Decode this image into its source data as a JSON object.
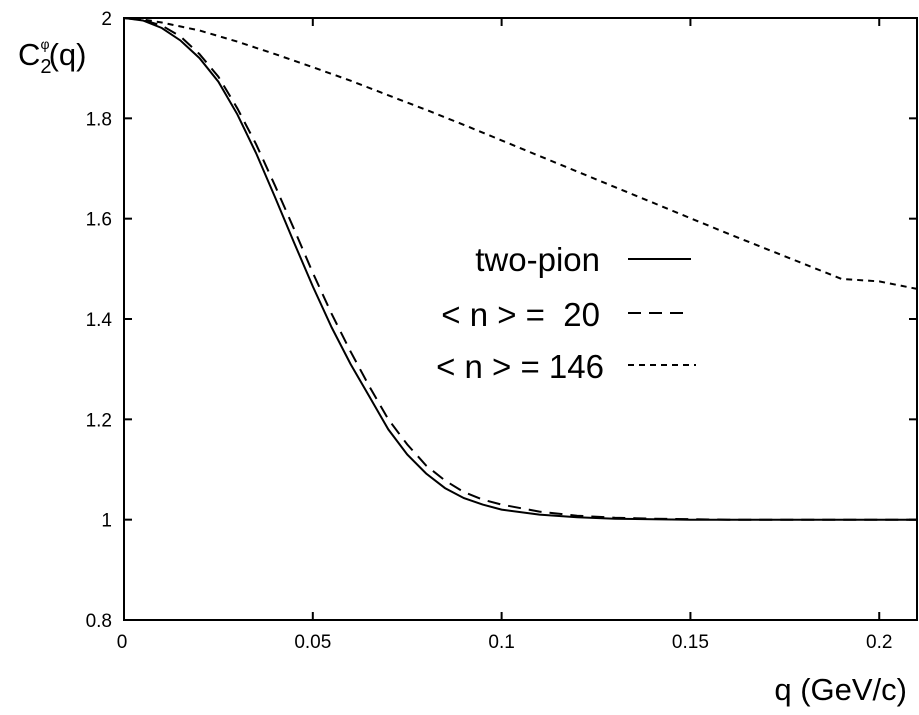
{
  "chart_data": {
    "type": "line",
    "xlabel": "q (GeV/c)",
    "ylabel": {
      "base": "C",
      "sub": "2",
      "sup": "φ",
      "arg": "(q)"
    },
    "xlim": [
      0,
      0.21
    ],
    "ylim": [
      0.8,
      2.0
    ],
    "x_ticks": [
      0,
      0.05,
      0.1,
      0.15,
      0.2
    ],
    "x_tick_labels": [
      "0",
      "0.05",
      "0.1",
      "0.15",
      "0.2"
    ],
    "y_ticks": [
      0.8,
      1.0,
      1.2,
      1.4,
      1.6,
      1.8,
      2.0
    ],
    "y_tick_labels": [
      "0.8",
      "1",
      "1.2",
      "1.4",
      "1.6",
      "1.8",
      "2"
    ],
    "grid": false,
    "legend_position": "center-right",
    "series": [
      {
        "name": "two-pion",
        "line_style": "solid",
        "x": [
          0,
          0.005,
          0.01,
          0.015,
          0.02,
          0.025,
          0.03,
          0.035,
          0.04,
          0.045,
          0.05,
          0.055,
          0.06,
          0.065,
          0.07,
          0.075,
          0.08,
          0.085,
          0.09,
          0.095,
          0.1,
          0.11,
          0.12,
          0.13,
          0.14,
          0.15,
          0.16,
          0.18,
          0.2,
          0.21
        ],
        "y": [
          2.0,
          1.995,
          1.98,
          1.955,
          1.92,
          1.873,
          1.808,
          1.73,
          1.643,
          1.553,
          1.465,
          1.383,
          1.31,
          1.245,
          1.18,
          1.13,
          1.092,
          1.063,
          1.043,
          1.03,
          1.02,
          1.01,
          1.005,
          1.002,
          1.001,
          1.0,
          1.0,
          1.0,
          1.0,
          1.0
        ]
      },
      {
        "name": "< n > =  20",
        "line_style": "dashed",
        "x": [
          0,
          0.005,
          0.01,
          0.015,
          0.02,
          0.025,
          0.03,
          0.035,
          0.04,
          0.045,
          0.05,
          0.055,
          0.06,
          0.065,
          0.07,
          0.075,
          0.08,
          0.085,
          0.09,
          0.095,
          0.1,
          0.11,
          0.12,
          0.13,
          0.14,
          0.15,
          0.16,
          0.18,
          0.2,
          0.21
        ],
        "y": [
          2.0,
          1.996,
          1.985,
          1.963,
          1.928,
          1.883,
          1.82,
          1.748,
          1.666,
          1.58,
          1.492,
          1.41,
          1.335,
          1.265,
          1.2,
          1.15,
          1.108,
          1.078,
          1.055,
          1.04,
          1.03,
          1.016,
          1.008,
          1.004,
          1.002,
          1.001,
          1.0,
          1.0,
          1.0,
          1.0
        ]
      },
      {
        "name": "< n > = 146",
        "line_style": "dotted",
        "x": [
          0,
          0.005,
          0.01,
          0.02,
          0.03,
          0.04,
          0.05,
          0.06,
          0.07,
          0.08,
          0.09,
          0.1,
          0.11,
          0.12,
          0.13,
          0.14,
          0.15,
          0.16,
          0.17,
          0.18,
          0.19,
          0.2,
          0.21
        ],
        "y": [
          2.0,
          1.997,
          1.991,
          1.975,
          1.953,
          1.928,
          1.902,
          1.875,
          1.846,
          1.817,
          1.787,
          1.756,
          1.725,
          1.694,
          1.663,
          1.632,
          1.601,
          1.57,
          1.54,
          1.51,
          1.48,
          1.475,
          1.46
        ]
      }
    ]
  }
}
